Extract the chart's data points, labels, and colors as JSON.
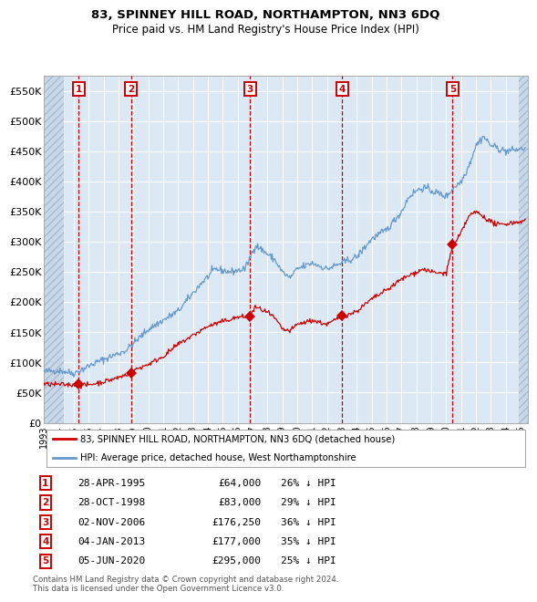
{
  "title": "83, SPINNEY HILL ROAD, NORTHAMPTON, NN3 6DQ",
  "subtitle": "Price paid vs. HM Land Registry's House Price Index (HPI)",
  "footer": "Contains HM Land Registry data © Crown copyright and database right 2024.\nThis data is licensed under the Open Government Licence v3.0.",
  "legend_line1": "83, SPINNEY HILL ROAD, NORTHAMPTON, NN3 6DQ (detached house)",
  "legend_line2": "HPI: Average price, detached house, West Northamptonshire",
  "sales": [
    {
      "num": 1,
      "date": "28-APR-1995",
      "price": 64000,
      "pct": "26% ↓ HPI",
      "year_x": 1995.33
    },
    {
      "num": 2,
      "date": "28-OCT-1998",
      "price": 83000,
      "pct": "29% ↓ HPI",
      "year_x": 1998.83
    },
    {
      "num": 3,
      "date": "02-NOV-2006",
      "price": 176250,
      "pct": "36% ↓ HPI",
      "year_x": 2006.84
    },
    {
      "num": 4,
      "date": "04-JAN-2013",
      "price": 177000,
      "pct": "35% ↓ HPI",
      "year_x": 2013.01
    },
    {
      "num": 5,
      "date": "05-JUN-2020",
      "price": 295000,
      "pct": "25% ↓ HPI",
      "year_x": 2020.43
    }
  ],
  "ylim": [
    0,
    575000
  ],
  "xlim": [
    1993.0,
    2025.5
  ],
  "yticks": [
    0,
    50000,
    100000,
    150000,
    200000,
    250000,
    300000,
    350000,
    400000,
    450000,
    500000,
    550000
  ],
  "ytick_labels": [
    "£0",
    "£50K",
    "£100K",
    "£150K",
    "£200K",
    "£250K",
    "£300K",
    "£350K",
    "£400K",
    "£450K",
    "£500K",
    "£550K"
  ],
  "xticks": [
    1993,
    1994,
    1995,
    1996,
    1997,
    1998,
    1999,
    2000,
    2001,
    2002,
    2003,
    2004,
    2005,
    2006,
    2007,
    2008,
    2009,
    2010,
    2011,
    2012,
    2013,
    2014,
    2015,
    2016,
    2017,
    2018,
    2019,
    2020,
    2021,
    2022,
    2023,
    2024,
    2025
  ],
  "bg_color": "#dce9f5",
  "grid_color": "#ffffff",
  "red_line_color": "#cc0000",
  "blue_line_color": "#6699cc",
  "dashed_vline_color": "#cc0000",
  "sale_marker_color": "#cc0000",
  "label_box_color": "#cc0000",
  "hatch_left_end": 1994.3,
  "hatch_right_start": 2024.85
}
